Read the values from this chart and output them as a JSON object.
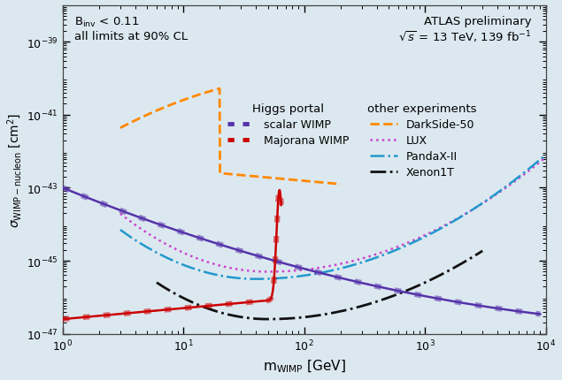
{
  "bg_color": "#dce8f0",
  "plot_bg_color": "#dce8f0",
  "xlim": [
    1,
    10000
  ],
  "ylim": [
    1e-47,
    1e-38
  ],
  "xlabel": "m$_{\\mathrm{WIMP}}$ [GeV]",
  "ylabel": "$\\sigma_{\\mathrm{WIMP-nucleon}}$ [cm$^{2}$]",
  "text_binv": "B$_{\\mathrm{inv}}$ < 0.11\nall limits at 90% CL",
  "text_atlas": "ATLAS preliminary\n$\\sqrt{s}$ = 13 TeV, 139 fb$^{-1}$",
  "legend_higgs_title": "Higgs portal",
  "legend_other_title": "other experiments",
  "scalar_color": "#5533aa",
  "majorana_color": "#cc0000",
  "darkside_color": "#ff8800",
  "lux_color": "#cc44cc",
  "pandax_color": "#2299cc",
  "xenon1t_color": "#111111",
  "scalar_lw": 1.8,
  "majorana_lw": 1.8,
  "darkside_lw": 2.0,
  "lux_lw": 1.8,
  "pandax_lw": 1.8,
  "xenon1t_lw": 2.0
}
